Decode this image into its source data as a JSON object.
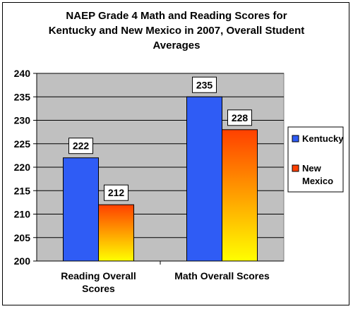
{
  "chart_data": {
    "type": "bar",
    "title_lines": [
      "NAEP Grade 4 Math and Reading Scores for",
      "Kentucky and New Mexico in 2007, Overall Student",
      "Averages"
    ],
    "categories": [
      [
        "Reading Overall",
        "Scores"
      ],
      [
        "Math Overall Scores"
      ]
    ],
    "series": [
      {
        "name": "Kentucky",
        "values": [
          222,
          235
        ],
        "color": "#2f5cf5"
      },
      {
        "name": "New Mexico",
        "name_lines": [
          "New",
          "Mexico"
        ],
        "values": [
          212,
          228
        ],
        "gradient": [
          "#ff4000",
          "#ffff00"
        ]
      }
    ],
    "ylim": [
      200,
      240
    ],
    "yticks": [
      200,
      205,
      210,
      215,
      220,
      225,
      230,
      235,
      240
    ],
    "grid": true,
    "plot_background": "#c0c0c0",
    "legend": "right"
  }
}
